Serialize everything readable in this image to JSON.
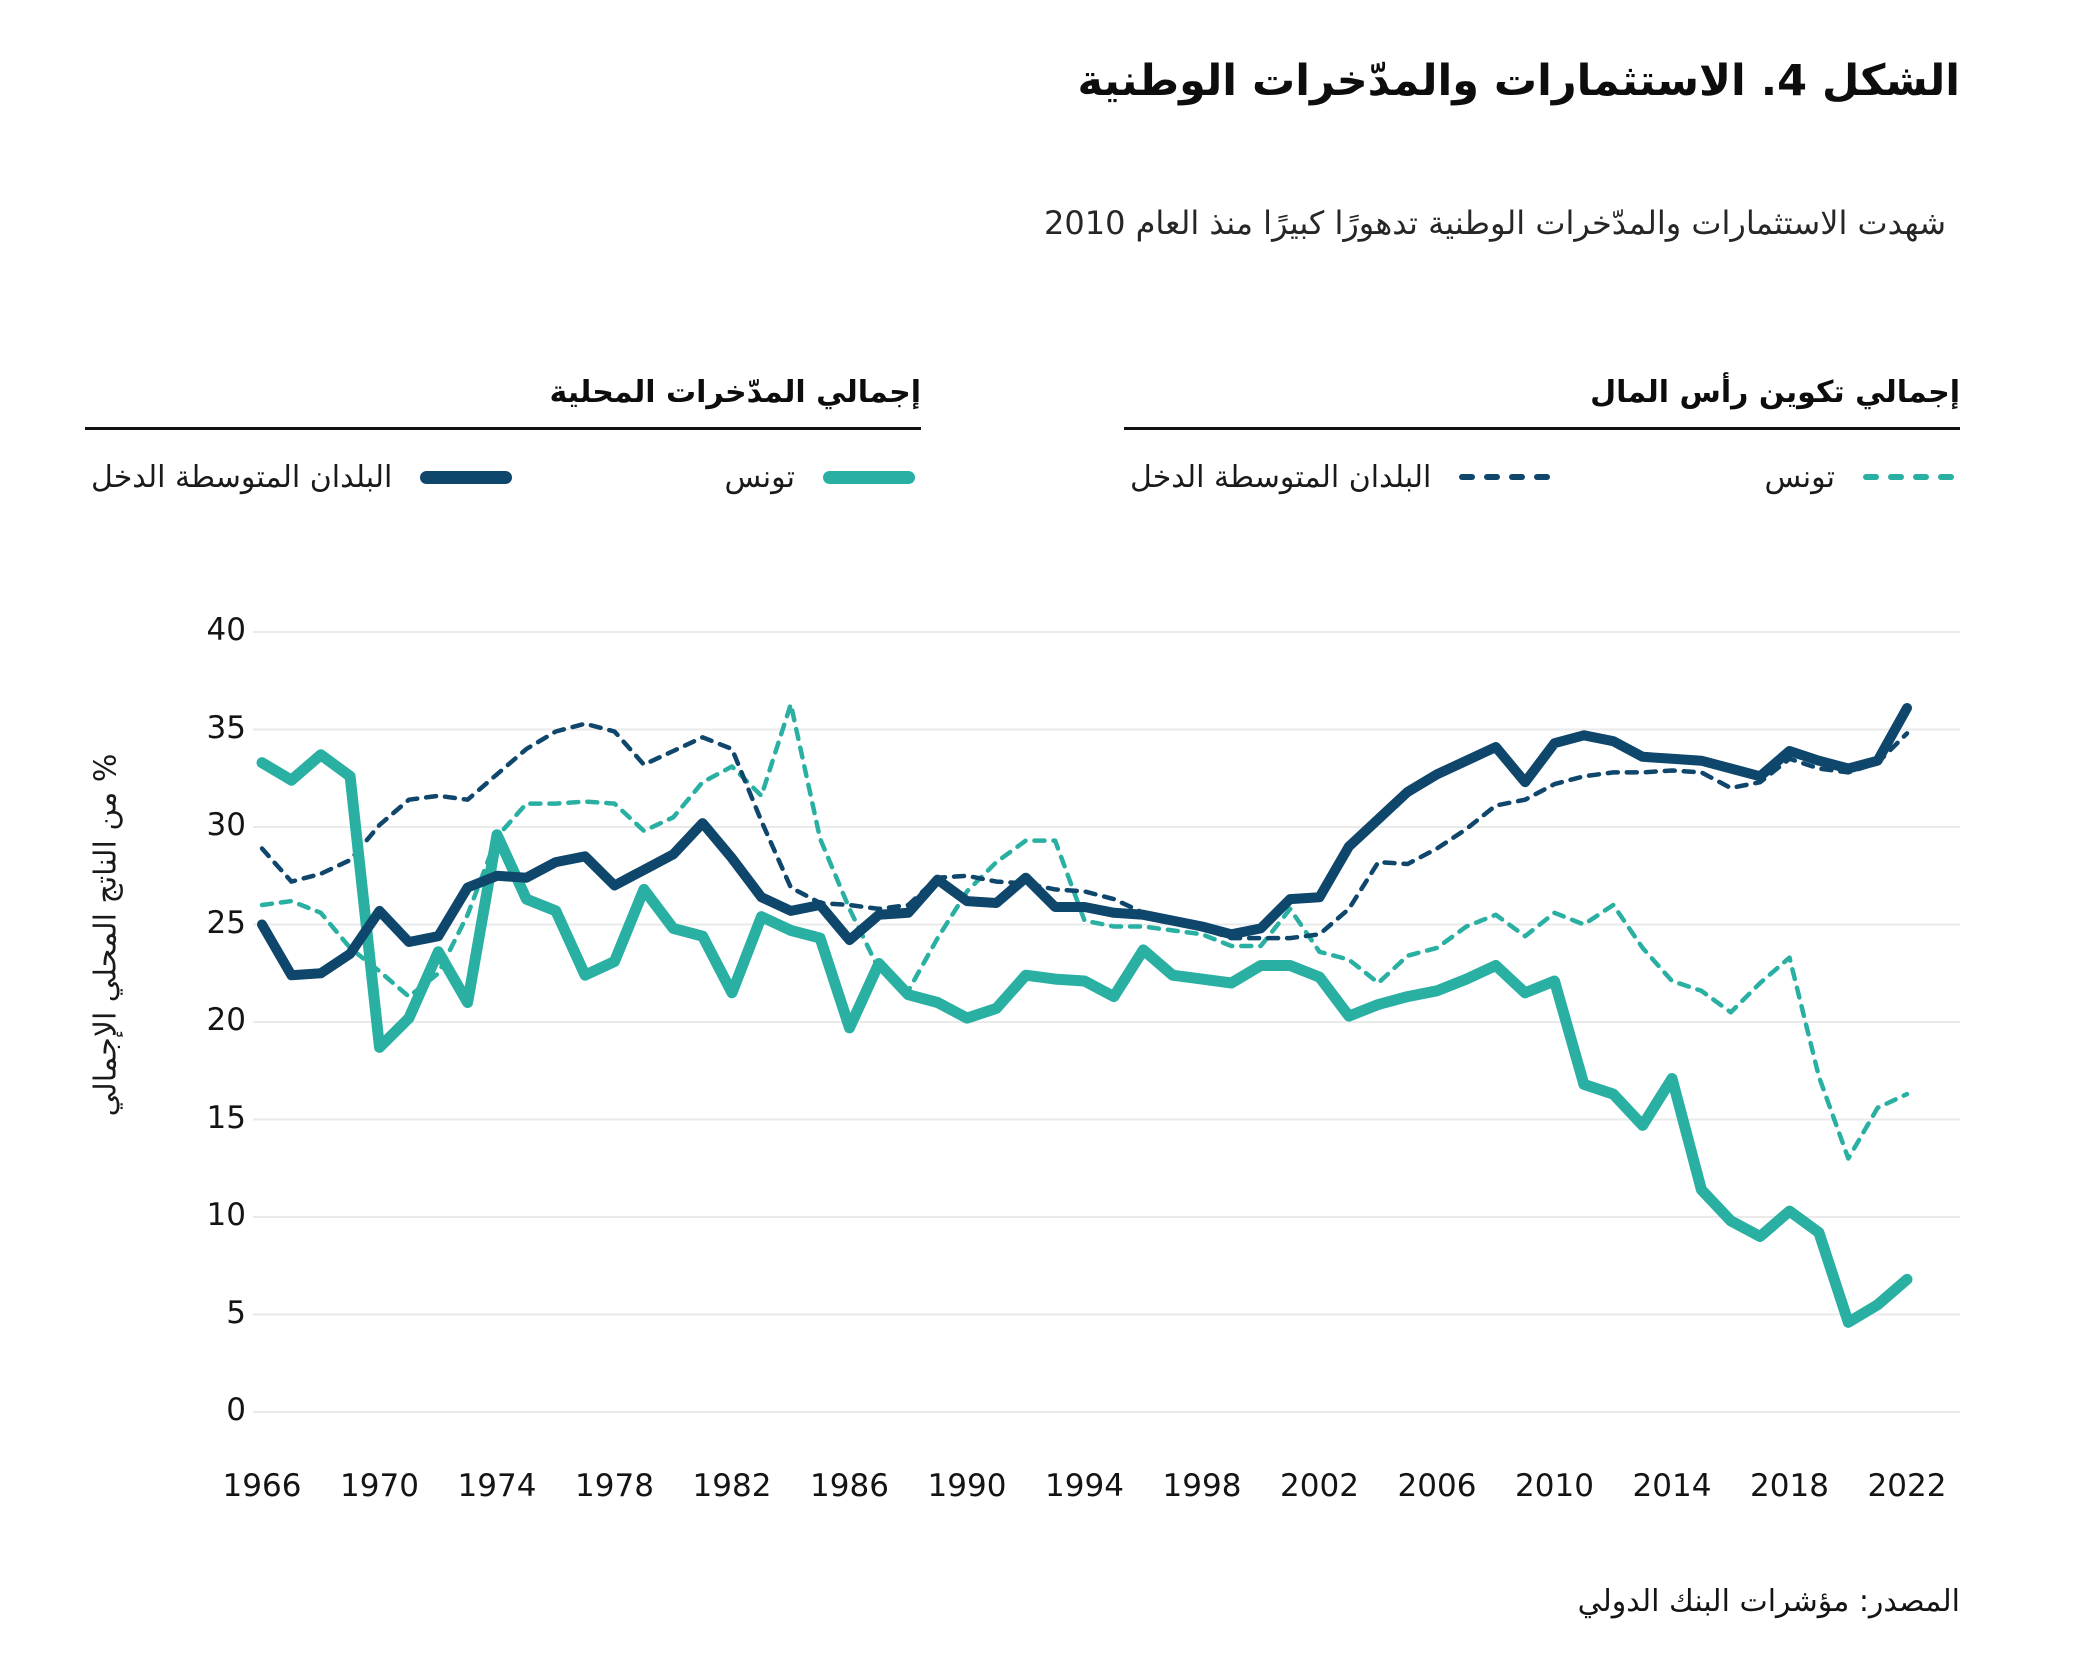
{
  "page": {
    "title": "الشكل 4. الاستثمارات والمدّخرات الوطنية",
    "subtitle": "شهدت الاستثمارات والمدّخرات الوطنية تدهورًا كبيرًا منذ العام 2010",
    "source": "المصدر: مؤشرات البنك الدولي"
  },
  "colors": {
    "navy": "#0f466b",
    "teal": "#29b0a3",
    "gridline": "#eaeaea",
    "text": "#141414"
  },
  "legend": {
    "groups": [
      {
        "id": "gross-capital-formation",
        "title": "إجمالي تكوين رأس المال",
        "items": [
          {
            "label": "تونس",
            "series": "gcf_tunisia"
          },
          {
            "label": "البلدان المتوسطة الدخل",
            "series": "gcf_mic"
          }
        ]
      },
      {
        "id": "gross-domestic-savings",
        "title": "إجمالي المدّخرات المحلية",
        "items": [
          {
            "label": "تونس",
            "series": "gds_tunisia"
          },
          {
            "label": "البلدان المتوسطة الدخل",
            "series": "gds_mic"
          }
        ]
      }
    ]
  },
  "chart_data": {
    "type": "line",
    "title": "الشكل 4. الاستثمارات والمدّخرات الوطنية",
    "xlabel": "",
    "ylabel": "% من الناتج المحلي الإجمالي",
    "ylim": [
      0,
      40
    ],
    "grid": true,
    "legend_position": "top",
    "x": [
      1966,
      1967,
      1968,
      1969,
      1970,
      1971,
      1972,
      1973,
      1974,
      1975,
      1976,
      1977,
      1978,
      1979,
      1980,
      1981,
      1982,
      1983,
      1984,
      1985,
      1986,
      1987,
      1988,
      1989,
      1990,
      1991,
      1992,
      1993,
      1994,
      1995,
      1996,
      1997,
      1998,
      1999,
      2000,
      2001,
      2002,
      2003,
      2004,
      2005,
      2006,
      2007,
      2008,
      2009,
      2010,
      2011,
      2012,
      2013,
      2014,
      2015,
      2016,
      2017,
      2018,
      2019,
      2020,
      2021,
      2022
    ],
    "x_ticks": [
      1966,
      1970,
      1974,
      1978,
      1982,
      1986,
      1990,
      1994,
      1998,
      2002,
      2006,
      2010,
      2014,
      2018,
      2022
    ],
    "y_ticks": [
      0,
      5,
      10,
      15,
      20,
      25,
      30,
      35,
      40
    ],
    "series": [
      {
        "id": "gcf_tunisia",
        "name": "إجمالي تكوين رأس المال — تونس",
        "color": "teal",
        "dash": true,
        "width": 4.5,
        "values": [
          26.0,
          26.2,
          25.6,
          23.8,
          22.6,
          21.3,
          22.5,
          25.5,
          29.5,
          31.2,
          31.2,
          31.3,
          31.2,
          29.8,
          30.5,
          32.3,
          33.1,
          31.6,
          36.3,
          29.4,
          25.8,
          22.7,
          21.6,
          24.3,
          26.7,
          28.2,
          29.3,
          29.3,
          25.2,
          24.9,
          24.9,
          24.7,
          24.5,
          23.9,
          23.9,
          25.8,
          23.6,
          23.2,
          22.0,
          23.4,
          23.8,
          24.9,
          25.5,
          24.4,
          25.6,
          25.0,
          26.0,
          23.8,
          22.1,
          21.6,
          20.5,
          22.0,
          23.3,
          17.2,
          13.0,
          15.6,
          16.3
        ]
      },
      {
        "id": "gcf_mic",
        "name": "إجمالي تكوين رأس المال — البلدان المتوسطة الدخل",
        "color": "navy",
        "dash": true,
        "width": 4.5,
        "values": [
          28.9,
          27.2,
          27.6,
          28.3,
          30.1,
          31.4,
          31.6,
          31.4,
          32.7,
          34.0,
          34.9,
          35.3,
          34.9,
          33.2,
          33.9,
          34.6,
          34.0,
          30.3,
          26.9,
          26.1,
          26.0,
          25.8,
          26.0,
          27.4,
          27.5,
          27.2,
          27.1,
          26.8,
          26.7,
          26.3,
          25.6,
          25.2,
          24.8,
          24.3,
          24.3,
          24.3,
          24.5,
          25.8,
          28.2,
          28.1,
          28.9,
          29.9,
          31.1,
          31.4,
          32.2,
          32.6,
          32.8,
          32.8,
          32.9,
          32.8,
          32.0,
          32.3,
          33.5,
          33.0,
          32.8,
          33.3,
          34.8
        ]
      },
      {
        "id": "gds_tunisia",
        "name": "إجمالي المدّخرات المحلية — تونس",
        "color": "teal",
        "dash": false,
        "width": 11,
        "values": [
          33.3,
          32.4,
          33.7,
          32.6,
          18.7,
          20.2,
          23.6,
          21.0,
          29.6,
          26.3,
          25.7,
          22.4,
          23.1,
          26.8,
          24.8,
          24.4,
          21.5,
          25.4,
          24.7,
          24.3,
          19.7,
          23.0,
          21.4,
          21.0,
          20.2,
          20.7,
          22.4,
          22.2,
          22.1,
          21.3,
          23.7,
          22.4,
          22.2,
          22.0,
          22.9,
          22.9,
          22.3,
          20.3,
          20.9,
          21.3,
          21.6,
          22.2,
          22.9,
          21.5,
          22.1,
          16.8,
          16.3,
          14.7,
          17.1,
          11.4,
          9.8,
          9.0,
          10.3,
          9.2,
          4.6,
          5.5,
          6.8
        ]
      },
      {
        "id": "gds_mic",
        "name": "إجمالي المدّخرات المحلية — البلدان المتوسطة الدخل",
        "color": "navy",
        "dash": false,
        "width": 10,
        "values": [
          25.0,
          22.4,
          22.5,
          23.5,
          25.7,
          24.1,
          24.4,
          26.9,
          27.5,
          27.4,
          28.2,
          28.5,
          27.0,
          27.8,
          28.6,
          30.2,
          28.4,
          26.4,
          25.7,
          26.0,
          24.2,
          25.5,
          25.6,
          27.3,
          26.2,
          26.1,
          27.4,
          25.9,
          25.9,
          25.6,
          25.5,
          25.2,
          24.9,
          24.5,
          24.8,
          26.3,
          26.4,
          29.0,
          30.4,
          31.8,
          32.7,
          33.4,
          34.1,
          32.3,
          34.3,
          34.7,
          34.4,
          33.6,
          33.5,
          33.4,
          33.0,
          32.6,
          33.9,
          33.4,
          33.0,
          33.4,
          36.1
        ]
      }
    ]
  }
}
